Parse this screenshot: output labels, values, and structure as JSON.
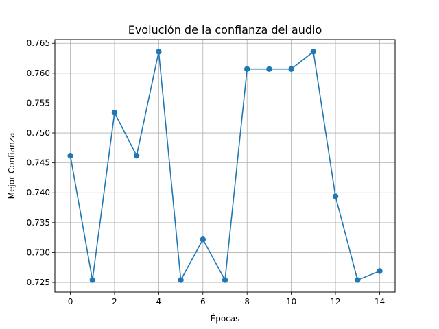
{
  "chart_data": {
    "type": "line",
    "title": "Evolución de la confianza del audio",
    "xlabel": "Épocas",
    "ylabel": "Mejor Confianza",
    "x": [
      0,
      1,
      2,
      3,
      4,
      5,
      6,
      7,
      8,
      9,
      10,
      11,
      12,
      13,
      14
    ],
    "series": [
      {
        "values": [
          0.7462,
          0.7254,
          0.7534,
          0.7462,
          0.7636,
          0.7254,
          0.7322,
          0.7254,
          0.7607,
          0.7607,
          0.7607,
          0.7636,
          0.7394,
          0.7254,
          0.7269
        ],
        "color": "#1f77b4",
        "marker": "circle"
      }
    ],
    "xlim": [
      -0.7,
      14.7
    ],
    "ylim": [
      0.7234,
      0.7656
    ],
    "xticks": [
      0,
      2,
      4,
      6,
      8,
      10,
      12,
      14
    ],
    "xtick_labels": [
      "0",
      "2",
      "4",
      "6",
      "8",
      "10",
      "12",
      "14"
    ],
    "yticks": [
      0.725,
      0.73,
      0.735,
      0.74,
      0.745,
      0.75,
      0.755,
      0.76,
      0.765
    ],
    "ytick_labels": [
      "0.725",
      "0.730",
      "0.735",
      "0.740",
      "0.745",
      "0.750",
      "0.755",
      "0.760",
      "0.765"
    ],
    "grid": true,
    "grid_color": "#b0b0b0"
  }
}
